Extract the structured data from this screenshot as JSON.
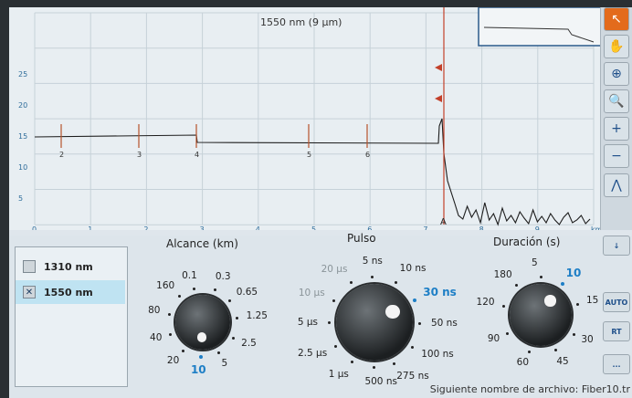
{
  "trace": {
    "title": "1550 nm (9 µm)",
    "x_ticks": [
      "0",
      "1",
      "2",
      "3",
      "4",
      "5",
      "6",
      "7",
      "8",
      "9",
      "km"
    ],
    "y_ticks": [
      "25",
      "20",
      "15",
      "10",
      "5"
    ],
    "events": [
      "2",
      "3",
      "4",
      "5",
      "6"
    ],
    "cursor_label": "A"
  },
  "toolbar": {
    "pointer": "pointer-icon",
    "pan": "hand-icon",
    "zoom_h": "zoom-fit-icon",
    "zoom_v": "zoom-area-icon",
    "zoom_in": "zoom-in-icon",
    "zoom_out": "zoom-out-icon",
    "marker": "marker-icon",
    "down": "arrow-down-icon",
    "auto_label": "AUTO",
    "rt_label": "RT",
    "more_label": "..."
  },
  "wavelengths": [
    {
      "label": "1310 nm",
      "checked": false
    },
    {
      "label": "1550 nm",
      "checked": true
    }
  ],
  "alcance": {
    "label": "Alcance (km)",
    "options": [
      "0.1",
      "0.3",
      "0.65",
      "1.25",
      "2.5",
      "5",
      "10",
      "20",
      "40",
      "80",
      "160"
    ],
    "selected": "10"
  },
  "pulso": {
    "label": "Pulso",
    "options": [
      "5 ns",
      "10 ns",
      "30 ns",
      "50 ns",
      "100 ns",
      "275 ns",
      "500 ns",
      "1 µs",
      "2.5 µs",
      "5 µs",
      "10 µs",
      "20 µs"
    ],
    "selected": "30 ns"
  },
  "duracion": {
    "label": "Duración (s)",
    "options": [
      "5",
      "10",
      "15",
      "30",
      "45",
      "60",
      "90",
      "120",
      "180"
    ],
    "selected": "10"
  },
  "status": {
    "next_file": "Siguiente nombre de archivo: Fiber10.tr"
  }
}
